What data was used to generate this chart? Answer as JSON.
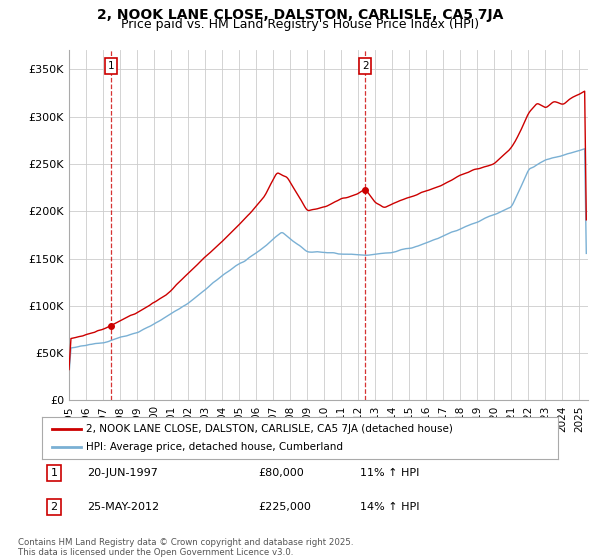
{
  "title_line1": "2, NOOK LANE CLOSE, DALSTON, CARLISLE, CA5 7JA",
  "title_line2": "Price paid vs. HM Land Registry's House Price Index (HPI)",
  "ylim": [
    0,
    370000
  ],
  "xlim_start": 1995.0,
  "xlim_end": 2025.5,
  "yticks": [
    0,
    50000,
    100000,
    150000,
    200000,
    250000,
    300000,
    350000
  ],
  "ytick_labels": [
    "£0",
    "£50K",
    "£100K",
    "£150K",
    "£200K",
    "£250K",
    "£300K",
    "£350K"
  ],
  "xticks": [
    1995,
    1996,
    1997,
    1998,
    1999,
    2000,
    2001,
    2002,
    2003,
    2004,
    2005,
    2006,
    2007,
    2008,
    2009,
    2010,
    2011,
    2012,
    2013,
    2014,
    2015,
    2016,
    2017,
    2018,
    2019,
    2020,
    2021,
    2022,
    2023,
    2024,
    2025
  ],
  "sale1_x": 1997.47,
  "sale1_y": 80000,
  "sale1_label": "1",
  "sale2_x": 2012.4,
  "sale2_y": 225000,
  "sale2_label": "2",
  "line1_color": "#cc0000",
  "line2_color": "#7ab0d4",
  "background_color": "#ffffff",
  "grid_color": "#cccccc",
  "legend_line1": "2, NOOK LANE CLOSE, DALSTON, CARLISLE, CA5 7JA (detached house)",
  "legend_line2": "HPI: Average price, detached house, Cumberland",
  "table_row1": [
    "1",
    "20-JUN-1997",
    "£80,000",
    "11% ↑ HPI"
  ],
  "table_row2": [
    "2",
    "25-MAY-2012",
    "£225,000",
    "14% ↑ HPI"
  ],
  "footnote": "Contains HM Land Registry data © Crown copyright and database right 2025.\nThis data is licensed under the Open Government Licence v3.0.",
  "title_fontsize": 10,
  "subtitle_fontsize": 9,
  "tick_fontsize": 8,
  "figsize": [
    6.0,
    5.6
  ],
  "dpi": 100
}
